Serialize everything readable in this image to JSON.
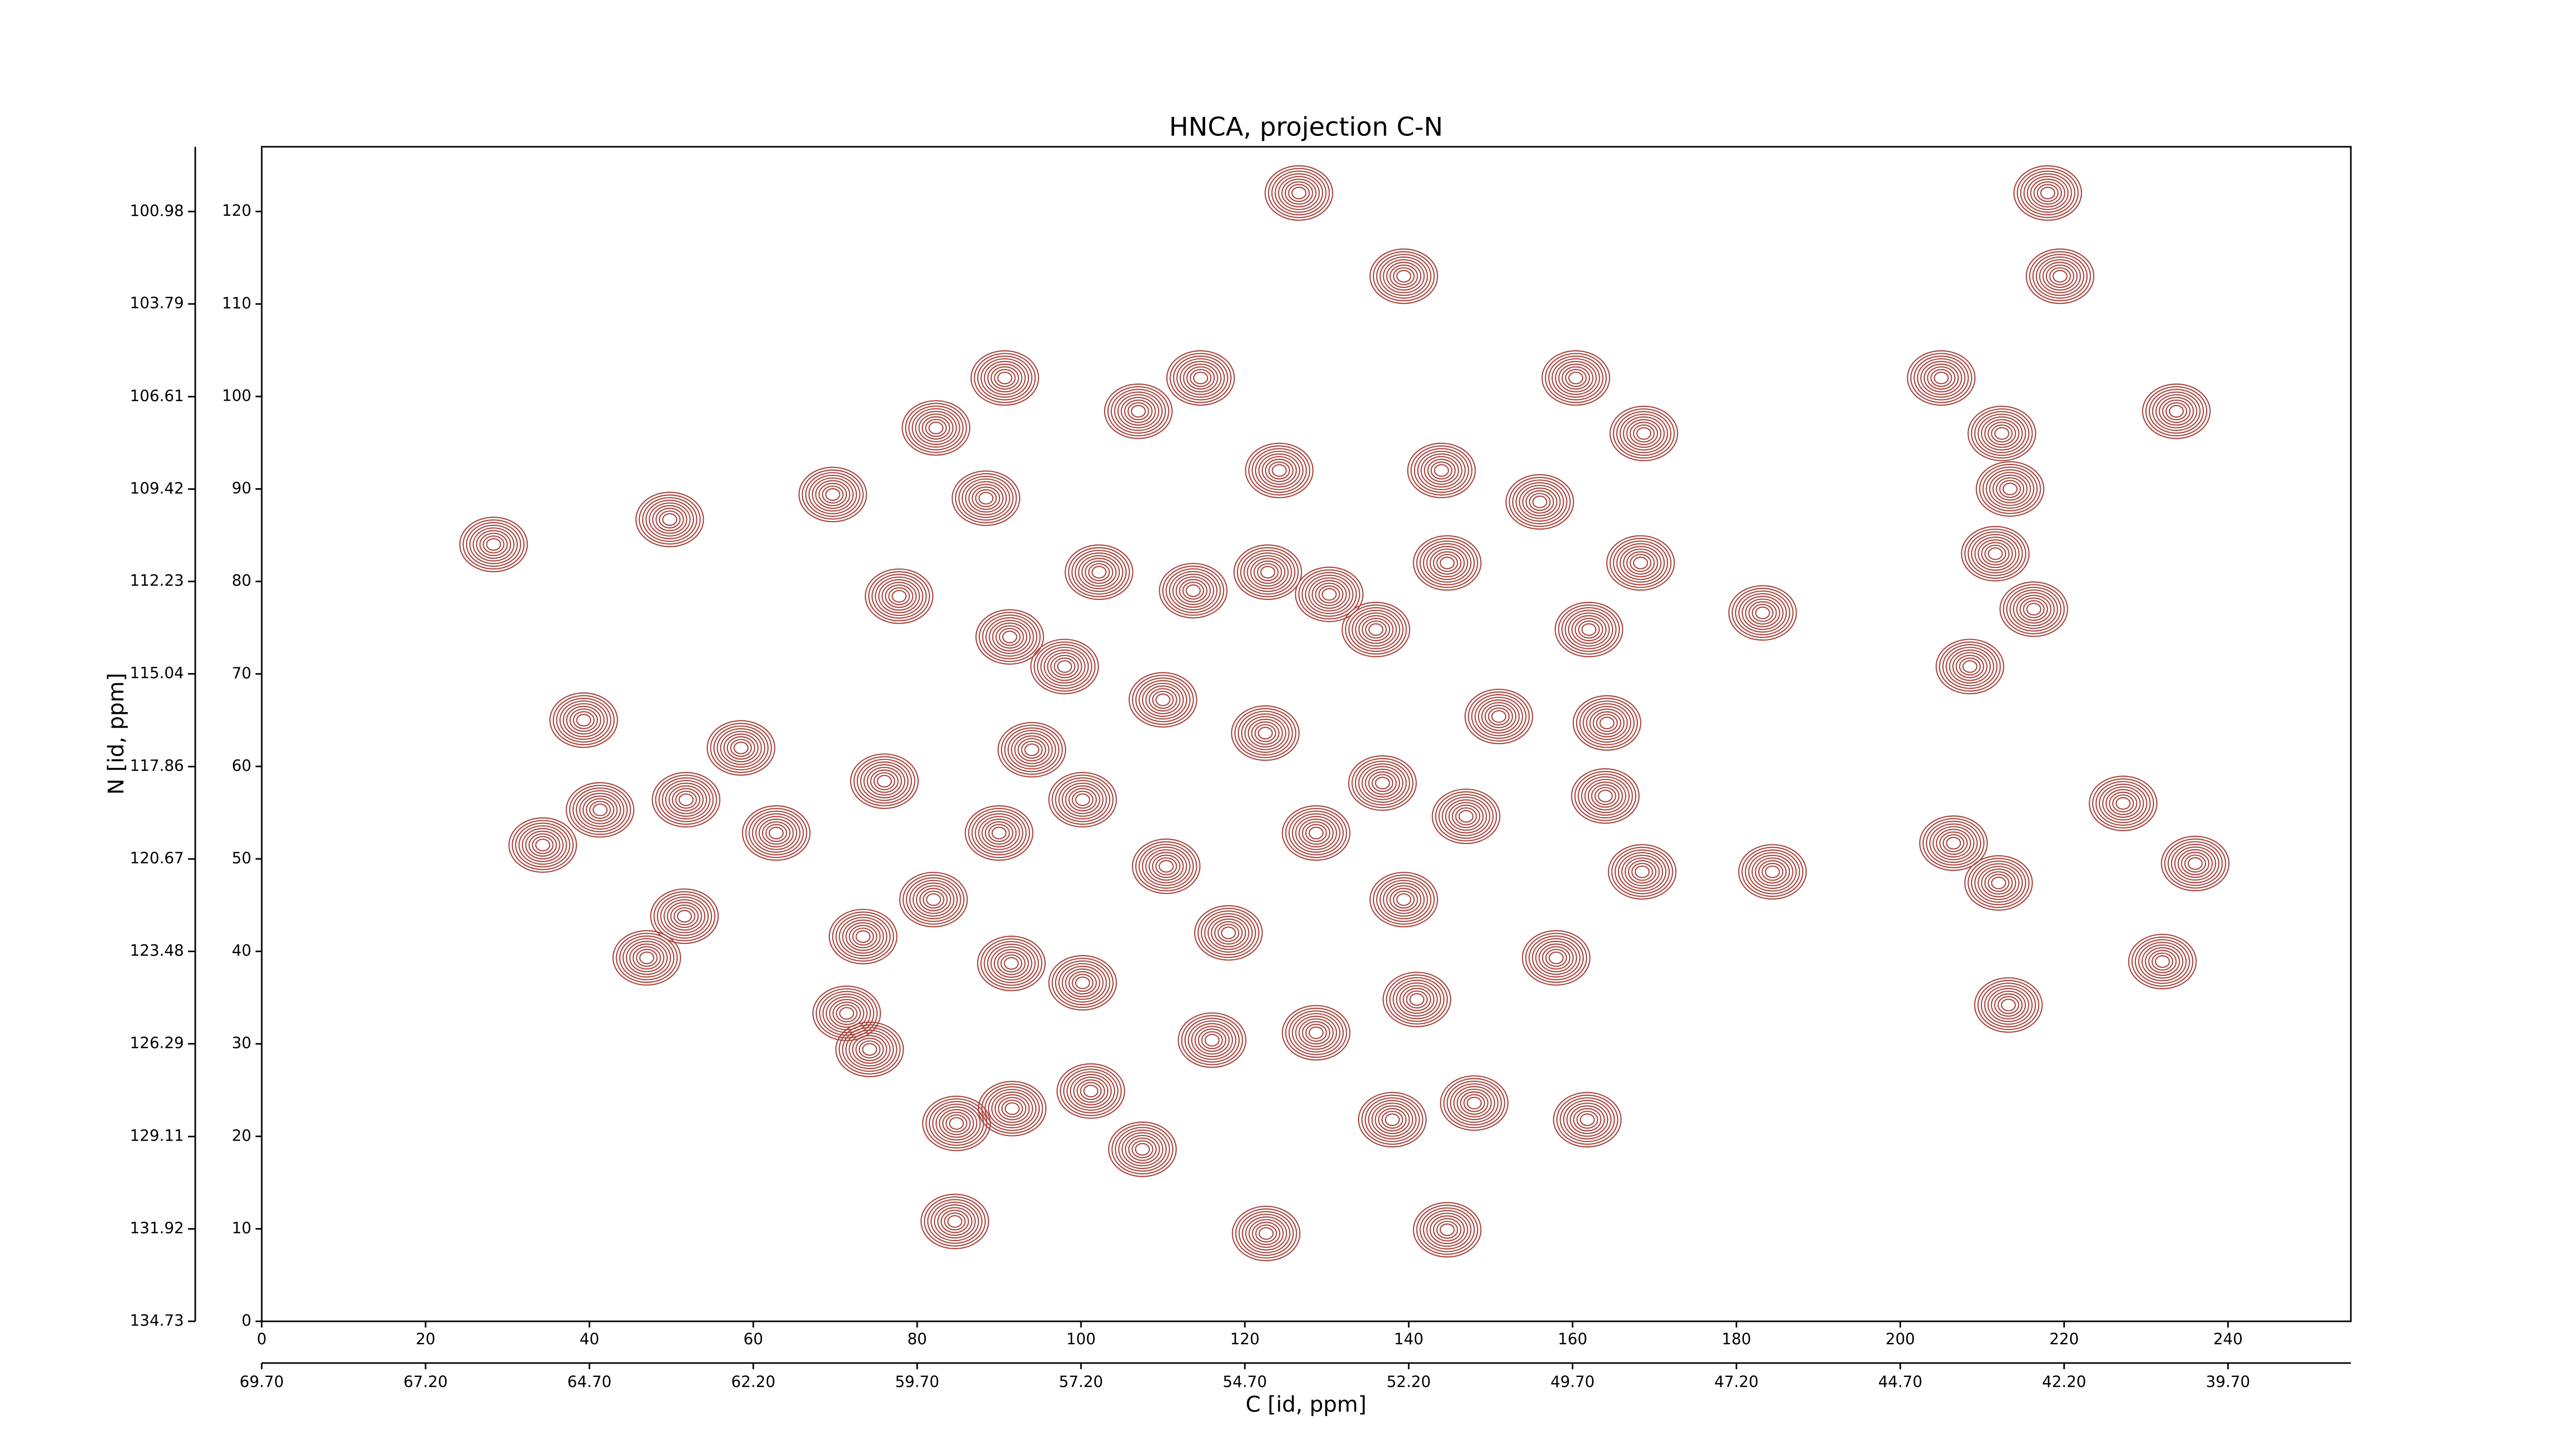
{
  "chart_data": {
    "type": "contour",
    "title": "HNCA, projection C-N",
    "xlabel": "C [id, ppm]",
    "ylabel": "N [id, ppm]",
    "color": "#a8413a",
    "xlim": [
      0,
      255
    ],
    "ylim": [
      0,
      127
    ],
    "xticks": [
      0,
      20,
      40,
      60,
      80,
      100,
      120,
      140,
      160,
      180,
      200,
      220,
      240
    ],
    "yticks": [
      0,
      10,
      20,
      30,
      40,
      50,
      60,
      70,
      80,
      90,
      100,
      110,
      120
    ],
    "x2lim": [
      69.7,
      37.825
    ],
    "x2ticks": [
      {
        "value": 69.7,
        "label": "69.70"
      },
      {
        "value": 67.2,
        "label": "67.20"
      },
      {
        "value": 64.7,
        "label": "64.70"
      },
      {
        "value": 62.2,
        "label": "62.20"
      },
      {
        "value": 59.7,
        "label": "59.70"
      },
      {
        "value": 57.2,
        "label": "57.20"
      },
      {
        "value": 54.7,
        "label": "54.70"
      },
      {
        "value": 52.2,
        "label": "52.20"
      },
      {
        "value": 49.7,
        "label": "49.70"
      },
      {
        "value": 47.2,
        "label": "47.20"
      },
      {
        "value": 44.7,
        "label": "44.70"
      },
      {
        "value": 42.2,
        "label": "42.20"
      },
      {
        "value": 39.7,
        "label": "39.70"
      }
    ],
    "y2lim": [
      134.73,
      99.01
    ],
    "y2ticks": [
      134.73,
      131.92,
      129.11,
      126.29,
      123.48,
      120.67,
      117.86,
      115.04,
      112.23,
      109.42,
      106.61,
      103.79,
      100.98
    ],
    "x": [
      218,
      219.5,
      126.6,
      139.4,
      90.7,
      82.3,
      107,
      114.6,
      160.4,
      168.7,
      205,
      212.4,
      233.7,
      124.2,
      144,
      156,
      88.4,
      69.7,
      49.8,
      28.3,
      102.2,
      113.7,
      122.8,
      144.7,
      168.3,
      211.6,
      213.4,
      77.8,
      91.3,
      130.3,
      136,
      162,
      183.2,
      216.3,
      208.5,
      39.3,
      58.5,
      164.2,
      76,
      41.3,
      34.3,
      51.8,
      62.8,
      164,
      168.5,
      184.4,
      206.5,
      212,
      227.2,
      236,
      232,
      213.2,
      51.6,
      47,
      73.4,
      71.4,
      74.2,
      84.8,
      91.6,
      101.2,
      107.5,
      84.6,
      122.6,
      144.7,
      138,
      148,
      161.8,
      116,
      128.7,
      91.5,
      100.2,
      118,
      139.4,
      158,
      110.4,
      128.7,
      147,
      94,
      110,
      122.5,
      136.8,
      151,
      90,
      100.2,
      82,
      141,
      98
    ],
    "values": [
      122,
      113,
      122,
      113,
      102,
      96.6,
      98.4,
      102,
      102,
      96,
      102,
      96,
      98.4,
      92,
      92,
      88.6,
      89,
      89.4,
      86.7,
      84,
      81,
      79,
      81,
      82,
      82,
      83,
      90,
      78.4,
      74,
      78.6,
      74.8,
      74.8,
      76.6,
      77,
      70.8,
      65,
      62,
      64.7,
      58.4,
      55.3,
      51.5,
      56.4,
      52.8,
      56.8,
      48.6,
      48.6,
      51.7,
      47.4,
      56,
      49.5,
      38.9,
      34.2,
      43.8,
      39.3,
      41.6,
      33.3,
      29.4,
      21.4,
      23,
      24.9,
      18.6,
      10.8,
      9.5,
      9.9,
      21.8,
      23.6,
      21.8,
      30.4,
      31.2,
      38.7,
      36.6,
      42,
      45.6,
      39.3,
      49.2,
      52.8,
      54.6,
      61.8,
      67.2,
      63.6,
      58.2,
      65.4,
      52.8,
      56.4,
      45.6,
      34.8,
      70.8
    ]
  }
}
